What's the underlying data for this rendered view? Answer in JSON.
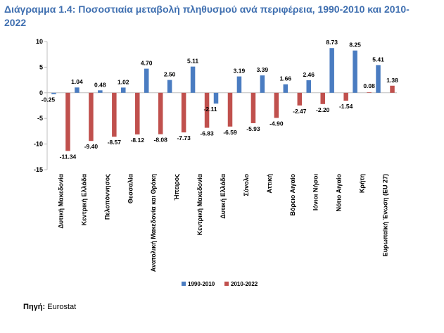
{
  "title": "Διάγραμμα 1.4: Ποσοστιαία μεταβολή πληθυσμού ανά περιφέρεια, 1990-2010 και 2010-2022",
  "source": {
    "label": "Πηγή:",
    "text": "Eurostat"
  },
  "colors": {
    "series1": "#4a7cc1",
    "series2": "#c0504d",
    "title": "#3f6fb0"
  },
  "chart_data": {
    "type": "bar",
    "title": "Διάγραμμα 1.4: Ποσοστιαία μεταβολή πληθυσμού ανά περιφέρεια, 1990-2010 και 2010-2022",
    "xlabel": "",
    "ylabel": "",
    "ylim": [
      -15,
      10
    ],
    "yticks": [
      10,
      5,
      0,
      -5,
      -10,
      -15
    ],
    "grid": false,
    "legend_position": "bottom",
    "categories": [
      "Δυτική Μακεδονία",
      "Κεντρική Ελλάδα",
      "Πελοπόννησος",
      "Θεσσαλία",
      "Ανατολική Μακεδονία και Θράκη",
      "Ήπειρος",
      "Κεντρική Μακεδονία",
      "Δυτική Ελλάδα",
      "Σύνολο",
      "Αττική",
      "Βόρειο Αιγαίο",
      "Ιόνιοι Νήσοι",
      "Νότιο Αιγαίο",
      "Κρήτη",
      "Ευρωπαϊκή Ένωση (EU 27)"
    ],
    "series": [
      {
        "name": "1990-2010",
        "values": [
          -0.25,
          1.04,
          0.48,
          1.02,
          4.7,
          2.5,
          5.11,
          -2.11,
          3.19,
          3.39,
          1.66,
          2.46,
          8.73,
          8.25,
          5.41
        ],
        "labels": [
          "-0.25",
          "1.04",
          "0.48",
          "1.02",
          "4.70",
          "2.50",
          "5.11",
          "-2.11",
          "3.19",
          "3.39",
          "1.66",
          "2.46",
          "8.73",
          "8.25",
          "5.41"
        ]
      },
      {
        "name": "2010-2022",
        "values": [
          -11.34,
          -9.4,
          -8.57,
          -8.12,
          -8.08,
          -7.73,
          -6.83,
          -6.59,
          -5.93,
          -4.9,
          -2.47,
          -2.2,
          -1.54,
          0.08,
          1.38
        ],
        "labels": [
          "-11.34",
          "-9.40",
          "-8.57",
          "-8.12",
          "-8.08",
          "-7.73",
          "-6.83",
          "-6.59",
          "-5.93",
          "-4.90",
          "-2.47",
          "-2.20",
          "-1.54",
          "0.08",
          "1.38"
        ]
      }
    ]
  }
}
